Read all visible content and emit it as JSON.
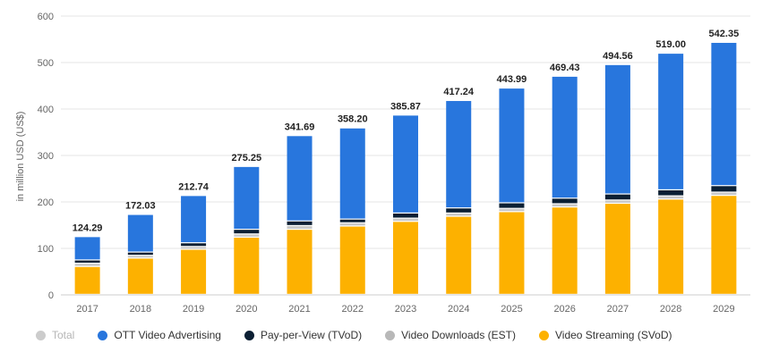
{
  "chart_data": {
    "type": "bar",
    "stacked": true,
    "ylabel": "in million USD (US$)",
    "ylim": [
      0,
      600
    ],
    "yticks": [
      0,
      100,
      200,
      300,
      400,
      500,
      600
    ],
    "grid": true,
    "legend_position": "bottom",
    "categories": [
      "2017",
      "2018",
      "2019",
      "2020",
      "2021",
      "2022",
      "2023",
      "2024",
      "2025",
      "2026",
      "2027",
      "2028",
      "2029"
    ],
    "totals": [
      124.29,
      172.03,
      212.74,
      275.25,
      341.69,
      358.2,
      385.87,
      417.24,
      443.99,
      469.43,
      494.56,
      519.0,
      542.35
    ],
    "total_labels": [
      "124.29",
      "172.03",
      "212.74",
      "275.25",
      "341.69",
      "358.20",
      "385.87",
      "417.24",
      "443.99",
      "469.43",
      "494.56",
      "519.00",
      "542.35"
    ],
    "series": [
      {
        "name": "Video Streaming (SVoD)",
        "color": "#fdb100",
        "values": [
          60,
          78,
          97,
          123,
          140,
          147,
          157,
          168,
          178,
          188,
          196,
          205,
          213
        ]
      },
      {
        "name": "Video Downloads (EST)",
        "color": "#c8c8c8",
        "values": [
          7,
          6,
          6,
          7,
          8,
          7,
          7,
          7,
          7,
          7,
          7,
          7,
          7
        ]
      },
      {
        "name": "Pay-per-View (TVoD)",
        "color": "#0b1f33",
        "values": [
          7,
          7,
          8,
          10,
          10,
          8,
          11,
          11,
          12,
          12,
          13,
          13,
          14
        ]
      },
      {
        "name": "OTT Video Advertising",
        "color": "#2876dd",
        "values": [
          50.29,
          81.03,
          101.74,
          135.25,
          183.69,
          196.2,
          210.87,
          231.24,
          246.99,
          262.43,
          278.56,
          294.0,
          308.35
        ]
      }
    ]
  },
  "legend": [
    {
      "label": "Total",
      "color": "#cccccc",
      "inactive": true
    },
    {
      "label": "OTT Video Advertising",
      "color": "#2876dd"
    },
    {
      "label": "Pay-per-View (TVoD)",
      "color": "#0b1f33"
    },
    {
      "label": "Video Downloads (EST)",
      "color": "#b8b8b8"
    },
    {
      "label": "Video Streaming (SVoD)",
      "color": "#fdb100"
    }
  ]
}
